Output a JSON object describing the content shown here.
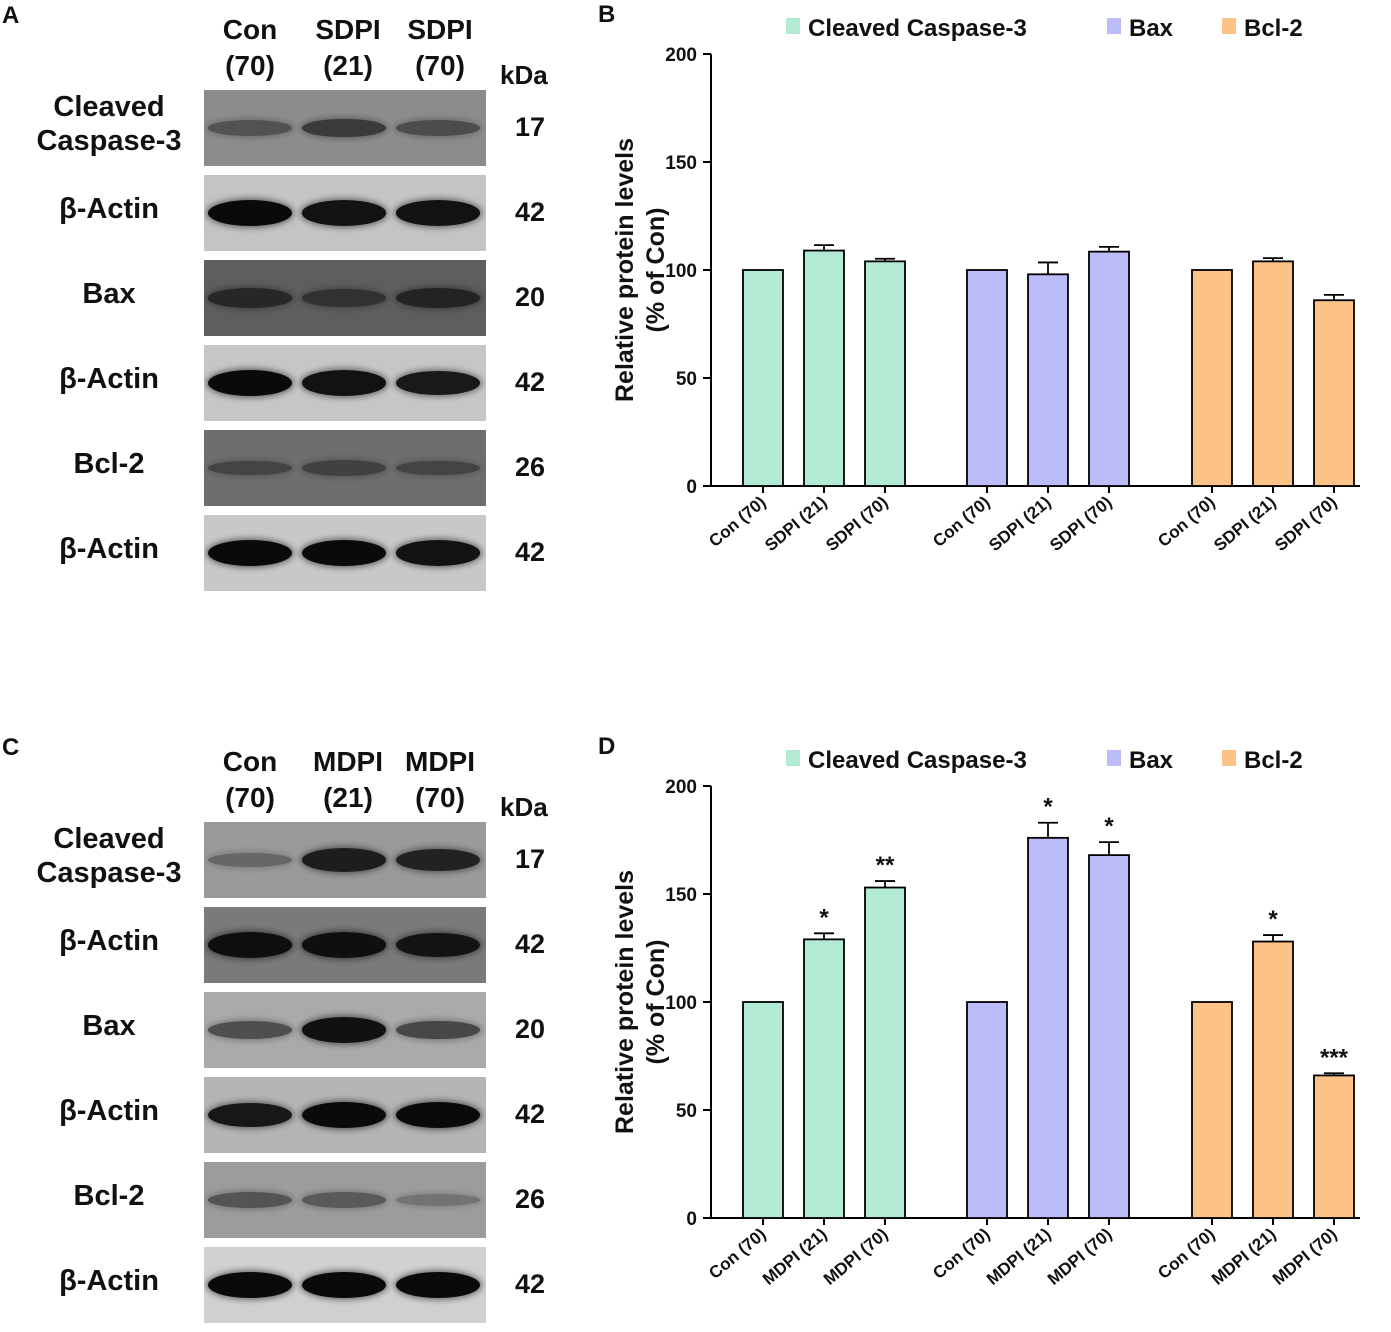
{
  "figure": {
    "panel_letters": [
      "A",
      "B",
      "C",
      "D"
    ]
  },
  "blots": [
    {
      "letter": "A",
      "lanes": [
        {
          "line1": "Con",
          "line2": "(70)"
        },
        {
          "line1": "SDPI",
          "line2": "(21)"
        },
        {
          "line1": "SDPI",
          "line2": "(70)"
        }
      ],
      "kda_label": "kDa",
      "rows": [
        {
          "label_lines": [
            "Cleaved",
            "Caspase-3"
          ],
          "kda": "17",
          "bg": "#8c8c8c",
          "intensity": [
            0.35,
            0.55,
            0.4
          ]
        },
        {
          "label_lines": [
            "β-Actin"
          ],
          "kda": "42",
          "bg": "#c4c4c4",
          "intensity": [
            1,
            0.95,
            0.95
          ]
        },
        {
          "label_lines": [
            "Bax"
          ],
          "kda": "20",
          "bg": "#5e5e5e",
          "intensity": [
            0.6,
            0.45,
            0.65
          ]
        },
        {
          "label_lines": [
            "β-Actin"
          ],
          "kda": "42",
          "bg": "#c6c6c6",
          "intensity": [
            1,
            0.95,
            0.9
          ]
        },
        {
          "label_lines": [
            "Bcl-2"
          ],
          "kda": "26",
          "bg": "#6e6e6e",
          "intensity": [
            0.3,
            0.35,
            0.3
          ]
        },
        {
          "label_lines": [
            "β-Actin"
          ],
          "kda": "42",
          "bg": "#c8c8c8",
          "intensity": [
            1,
            1,
            0.95
          ]
        }
      ]
    },
    {
      "letter": "C",
      "lanes": [
        {
          "line1": "Con",
          "line2": "(70)"
        },
        {
          "line1": "MDPI",
          "line2": "(21)"
        },
        {
          "line1": "MDPI",
          "line2": "(70)"
        }
      ],
      "kda_label": "kDa",
      "rows": [
        {
          "label_lines": [
            "Cleaved",
            "Caspase-3"
          ],
          "kda": "17",
          "bg": "#9a9a9a",
          "intensity": [
            0.25,
            0.85,
            0.8
          ]
        },
        {
          "label_lines": [
            "β-Actin"
          ],
          "kda": "42",
          "bg": "#7a7a7a",
          "intensity": [
            0.95,
            0.95,
            0.9
          ]
        },
        {
          "label_lines": [
            "Bax"
          ],
          "kda": "20",
          "bg": "#aaaaaa",
          "intensity": [
            0.5,
            0.95,
            0.55
          ]
        },
        {
          "label_lines": [
            "β-Actin"
          ],
          "kda": "42",
          "bg": "#b4b4b4",
          "intensity": [
            0.9,
            1,
            1
          ]
        },
        {
          "label_lines": [
            "Bcl-2"
          ],
          "kda": "26",
          "bg": "#9c9c9c",
          "intensity": [
            0.4,
            0.35,
            0.15
          ]
        },
        {
          "label_lines": [
            "β-Actin"
          ],
          "kda": "42",
          "bg": "#d0d0d0",
          "intensity": [
            1,
            1,
            1
          ]
        }
      ]
    }
  ],
  "chart_data": [
    {
      "panel": "B",
      "type": "bar",
      "ylabel": "Relative protein levels (% of Con)",
      "ylabel_lines": [
        "Relative protein levels",
        "(% of Con)"
      ],
      "ylim": [
        0,
        200
      ],
      "yticks": [
        0,
        50,
        100,
        150,
        200
      ],
      "legend_position": "top",
      "groups": [
        {
          "name": "Cleaved Caspase-3",
          "color": "#b3ead3",
          "categories": [
            "Con (70)",
            "SDPI (21)",
            "SDPI (70)"
          ],
          "values": [
            100,
            109,
            104
          ],
          "errors": [
            0,
            2.5,
            1.2
          ],
          "significance": [
            "",
            "",
            ""
          ]
        },
        {
          "name": "Bax",
          "color": "#bcbcfa",
          "categories": [
            "Con (70)",
            "SDPI (21)",
            "SDPI (70)"
          ],
          "values": [
            100,
            98,
            108.5
          ],
          "errors": [
            0,
            5.5,
            2.2
          ],
          "significance": [
            "",
            "",
            ""
          ]
        },
        {
          "name": "Bcl-2",
          "color": "#fcc288",
          "categories": [
            "Con (70)",
            "SDPI (21)",
            "SDPI (70)"
          ],
          "values": [
            100,
            104,
            86
          ],
          "errors": [
            0,
            1.5,
            2.5
          ],
          "significance": [
            "",
            "",
            ""
          ]
        }
      ]
    },
    {
      "panel": "D",
      "type": "bar",
      "ylabel": "Relative protein levels (% of Con)",
      "ylabel_lines": [
        "Relative protein levels",
        "(% of Con)"
      ],
      "ylim": [
        0,
        200
      ],
      "yticks": [
        0,
        50,
        100,
        150,
        200
      ],
      "legend_position": "top",
      "groups": [
        {
          "name": "Cleaved Caspase-3",
          "color": "#b3ead3",
          "categories": [
            "Con (70)",
            "MDPI (21)",
            "MDPI (70)"
          ],
          "values": [
            100,
            129,
            153
          ],
          "errors": [
            0,
            2.8,
            3
          ],
          "significance": [
            "",
            "*",
            "**"
          ]
        },
        {
          "name": "Bax",
          "color": "#bcbcfa",
          "categories": [
            "Con (70)",
            "MDPI (21)",
            "MDPI (70)"
          ],
          "values": [
            100,
            176,
            168
          ],
          "errors": [
            0,
            7,
            6
          ],
          "significance": [
            "",
            "*",
            "*"
          ]
        },
        {
          "name": "Bcl-2",
          "color": "#fcc288",
          "categories": [
            "Con (70)",
            "MDPI (21)",
            "MDPI (70)"
          ],
          "values": [
            100,
            128,
            66
          ],
          "errors": [
            0,
            3,
            1
          ],
          "significance": [
            "",
            "*",
            "***"
          ]
        }
      ]
    }
  ]
}
